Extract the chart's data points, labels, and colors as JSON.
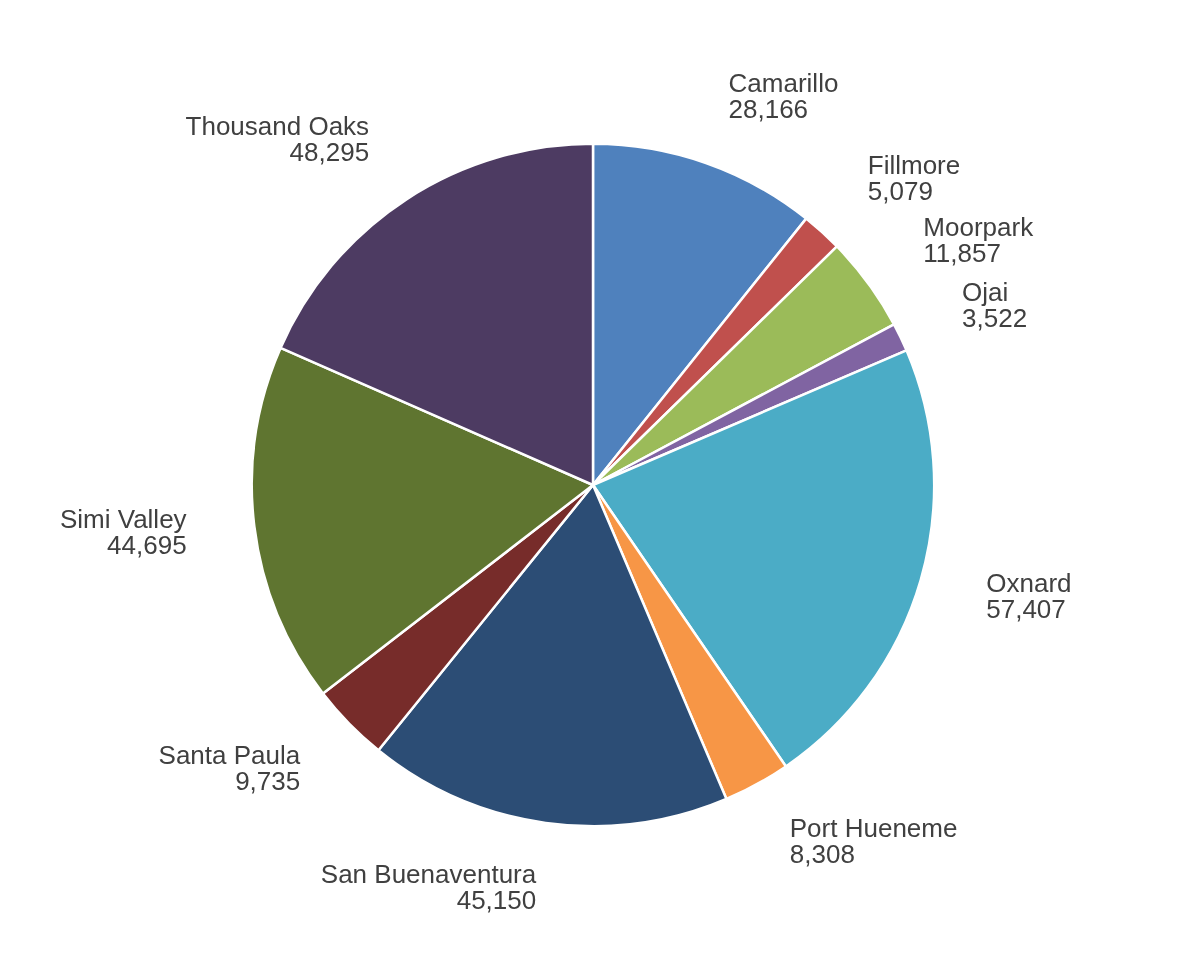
{
  "chart_data": {
    "type": "pie",
    "categories": [
      "Camarillo",
      "Fillmore",
      "Moorpark",
      "Ojai",
      "Oxnard",
      "Port Hueneme",
      "San Buenaventura",
      "Santa Paula",
      "Simi Valley",
      "Thousand Oaks"
    ],
    "values": [
      28166,
      5079,
      11857,
      3522,
      57407,
      8308,
      45150,
      9735,
      44695,
      48295
    ],
    "value_labels": [
      "28,166",
      "5,079",
      "11,857",
      "3,522",
      "57,407",
      "8,308",
      "45,150",
      "9,735",
      "44,695",
      "48,295"
    ],
    "colors": [
      "#4f81bd",
      "#c0504d",
      "#9bbb59",
      "#8064a2",
      "#4bacc6",
      "#f79646",
      "#2c4d75",
      "#772c2a",
      "#5f7530",
      "#4d3b62"
    ]
  }
}
